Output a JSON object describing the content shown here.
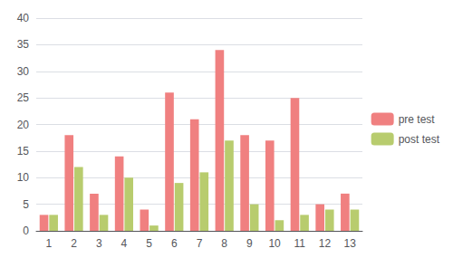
{
  "chart_data": {
    "type": "bar",
    "categories": [
      1,
      2,
      3,
      4,
      5,
      6,
      7,
      8,
      9,
      10,
      11,
      12,
      13
    ],
    "series": [
      {
        "name": "pre test",
        "color": "#F08080",
        "values": [
          3,
          18,
          7,
          14,
          4,
          26,
          21,
          34,
          18,
          17,
          25,
          5,
          7
        ]
      },
      {
        "name": "post test",
        "color": "#B8CC6E",
        "values": [
          3,
          12,
          3,
          10,
          1,
          9,
          11,
          17,
          5,
          2,
          3,
          4,
          4
        ]
      }
    ],
    "ylim": [
      0,
      40
    ],
    "yticks": [
      0,
      5,
      10,
      15,
      20,
      25,
      30,
      35,
      40
    ],
    "grid": true,
    "legend": "right"
  }
}
